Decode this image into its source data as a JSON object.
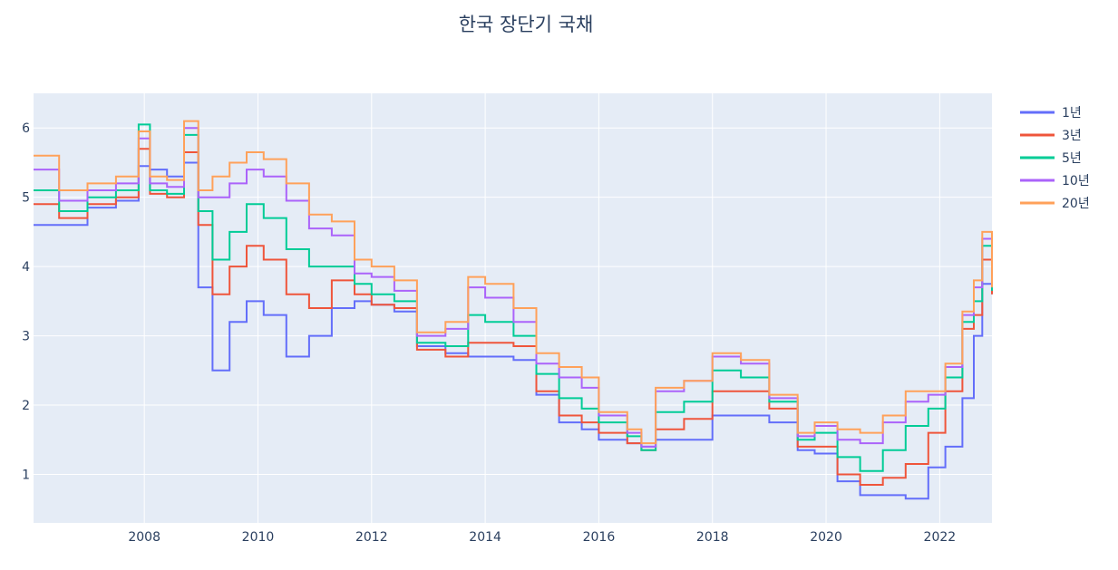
{
  "chart_data": {
    "type": "line",
    "line_shape": "step",
    "title": "한국 장단기 국채",
    "xlabel": "",
    "ylabel": "",
    "xlim": [
      2006.05,
      2022.92
    ],
    "ylim": [
      0.3,
      6.5
    ],
    "x_ticks": [
      2008,
      2010,
      2012,
      2014,
      2016,
      2018,
      2020,
      2022
    ],
    "x_tick_labels": [
      "2008",
      "2010",
      "2012",
      "2014",
      "2016",
      "2018",
      "2020",
      "2022"
    ],
    "y_ticks": [
      1,
      2,
      3,
      4,
      5,
      6
    ],
    "y_tick_labels": [
      "1",
      "2",
      "3",
      "4",
      "5",
      "6"
    ],
    "grid": true,
    "plot_background": "#e5ecf6",
    "legend_position": "right",
    "x": [
      2006.05,
      2006.5,
      2007.0,
      2007.5,
      2007.9,
      2008.1,
      2008.4,
      2008.7,
      2008.95,
      2009.2,
      2009.5,
      2009.8,
      2010.1,
      2010.5,
      2010.9,
      2011.3,
      2011.7,
      2012.0,
      2012.4,
      2012.8,
      2013.3,
      2013.7,
      2014.0,
      2014.5,
      2014.9,
      2015.3,
      2015.7,
      2016.0,
      2016.5,
      2016.75,
      2017.0,
      2017.5,
      2018.0,
      2018.5,
      2019.0,
      2019.5,
      2019.8,
      2020.2,
      2020.6,
      2021.0,
      2021.4,
      2021.8,
      2022.1,
      2022.4,
      2022.6,
      2022.75,
      2022.92
    ],
    "series": [
      {
        "name": "1년",
        "color": "#636efa",
        "values": [
          4.6,
          4.6,
          4.85,
          4.95,
          5.45,
          5.4,
          5.3,
          5.5,
          3.7,
          2.5,
          3.2,
          3.5,
          3.3,
          2.7,
          3.0,
          3.4,
          3.5,
          3.45,
          3.35,
          2.85,
          2.75,
          2.7,
          2.7,
          2.65,
          2.15,
          1.75,
          1.65,
          1.5,
          1.45,
          1.4,
          1.5,
          1.5,
          1.85,
          1.85,
          1.75,
          1.35,
          1.3,
          0.9,
          0.7,
          0.7,
          0.65,
          1.1,
          1.4,
          2.1,
          3.0,
          3.75,
          3.6
        ]
      },
      {
        "name": "3년",
        "color": "#ef553b",
        "values": [
          4.9,
          4.7,
          4.9,
          5.0,
          5.7,
          5.05,
          5.0,
          5.65,
          4.6,
          3.6,
          4.0,
          4.3,
          4.1,
          3.6,
          3.4,
          3.8,
          3.6,
          3.45,
          3.4,
          2.8,
          2.7,
          2.9,
          2.9,
          2.85,
          2.2,
          1.85,
          1.75,
          1.6,
          1.45,
          1.35,
          1.65,
          1.8,
          2.2,
          2.2,
          1.95,
          1.4,
          1.4,
          1.0,
          0.85,
          0.95,
          1.15,
          1.6,
          2.2,
          3.1,
          3.3,
          4.1,
          3.6
        ]
      },
      {
        "name": "5년",
        "color": "#00cc96",
        "values": [
          5.1,
          4.8,
          5.0,
          5.1,
          6.05,
          5.1,
          5.05,
          5.9,
          4.8,
          4.1,
          4.5,
          4.9,
          4.7,
          4.25,
          4.0,
          4.0,
          3.75,
          3.6,
          3.5,
          2.9,
          2.85,
          3.3,
          3.2,
          3.0,
          2.45,
          2.1,
          1.95,
          1.75,
          1.55,
          1.35,
          1.9,
          2.05,
          2.5,
          2.4,
          2.05,
          1.5,
          1.6,
          1.25,
          1.05,
          1.35,
          1.7,
          1.95,
          2.4,
          3.2,
          3.5,
          4.3,
          3.65
        ]
      },
      {
        "name": "10년",
        "color": "#ab63fa",
        "values": [
          5.4,
          4.95,
          5.1,
          5.2,
          5.85,
          5.2,
          5.15,
          6.0,
          5.0,
          5.0,
          5.2,
          5.4,
          5.3,
          4.95,
          4.55,
          4.45,
          3.9,
          3.85,
          3.65,
          3.0,
          3.1,
          3.7,
          3.55,
          3.2,
          2.6,
          2.4,
          2.25,
          1.85,
          1.6,
          1.4,
          2.2,
          2.35,
          2.7,
          2.6,
          2.1,
          1.55,
          1.7,
          1.5,
          1.45,
          1.75,
          2.05,
          2.15,
          2.55,
          3.3,
          3.7,
          4.4,
          3.7
        ]
      },
      {
        "name": "20년",
        "color": "#ffa15a",
        "values": [
          5.6,
          5.1,
          5.2,
          5.3,
          5.95,
          5.3,
          5.25,
          6.1,
          5.1,
          5.3,
          5.5,
          5.65,
          5.55,
          5.2,
          4.75,
          4.65,
          4.1,
          4.0,
          3.8,
          3.05,
          3.2,
          3.85,
          3.75,
          3.4,
          2.75,
          2.55,
          2.4,
          1.9,
          1.65,
          1.45,
          2.25,
          2.35,
          2.75,
          2.65,
          2.15,
          1.6,
          1.75,
          1.65,
          1.6,
          1.85,
          2.2,
          2.2,
          2.6,
          3.35,
          3.8,
          4.5,
          3.7
        ]
      }
    ]
  }
}
